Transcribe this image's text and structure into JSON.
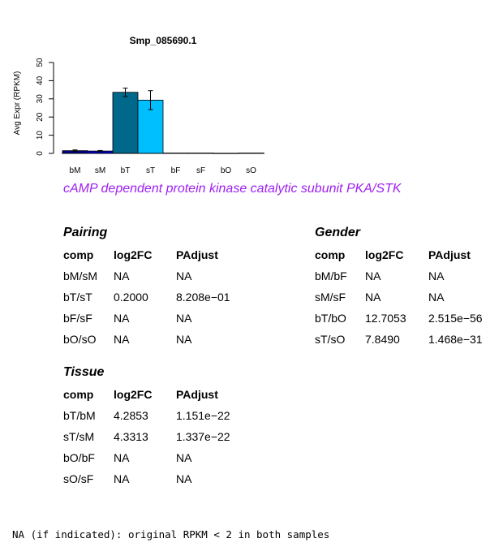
{
  "chart_data": {
    "type": "bar",
    "title": "Smp_085690.1",
    "ylabel": "Avg Expr (RPKM)",
    "xlabel": "",
    "ylim": [
      0,
      50
    ],
    "yticks": [
      0,
      10,
      20,
      30,
      40,
      50
    ],
    "categories": [
      "bM",
      "sM",
      "bT",
      "sT",
      "bF",
      "sF",
      "bO",
      "sO"
    ],
    "values": [
      1.5,
      1.3,
      33.6,
      29.3,
      0.2,
      0.2,
      0.1,
      0.2
    ],
    "errors": [
      0.4,
      0.3,
      2.3,
      5.2,
      0.1,
      0.1,
      0.05,
      0.1
    ],
    "colors": [
      "#00008b",
      "#0000cd",
      "#00688b",
      "#00bfff",
      "#cccccc",
      "#cccccc",
      "#cccccc",
      "#cccccc"
    ],
    "grid": false
  },
  "subtitle": "cAMP dependent protein kinase catalytic subunit PKA/STK",
  "tables": {
    "pairing": {
      "title": "Pairing",
      "headers": [
        "comp",
        "log2FC",
        "PAdjust"
      ],
      "rows": [
        [
          "bM/sM",
          "NA",
          "NA"
        ],
        [
          "bT/sT",
          "0.2000",
          "8.208e−01"
        ],
        [
          "bF/sF",
          "NA",
          "NA"
        ],
        [
          "bO/sO",
          "NA",
          "NA"
        ]
      ]
    },
    "gender": {
      "title": "Gender",
      "headers": [
        "comp",
        "log2FC",
        "PAdjust"
      ],
      "rows": [
        [
          "bM/bF",
          "NA",
          "NA"
        ],
        [
          "sM/sF",
          "NA",
          "NA"
        ],
        [
          "bT/bO",
          "12.7053",
          "2.515e−56"
        ],
        [
          "sT/sO",
          "7.8490",
          "1.468e−31"
        ]
      ]
    },
    "tissue": {
      "title": "Tissue",
      "headers": [
        "comp",
        "log2FC",
        "PAdjust"
      ],
      "rows": [
        [
          "bT/bM",
          "4.2853",
          "1.151e−22"
        ],
        [
          "sT/sM",
          "4.3313",
          "1.337e−22"
        ],
        [
          "bO/bF",
          "NA",
          "NA"
        ],
        [
          "sO/sF",
          "NA",
          "NA"
        ]
      ]
    }
  },
  "footnote": "NA (if indicated): original RPKM < 2 in both samples"
}
